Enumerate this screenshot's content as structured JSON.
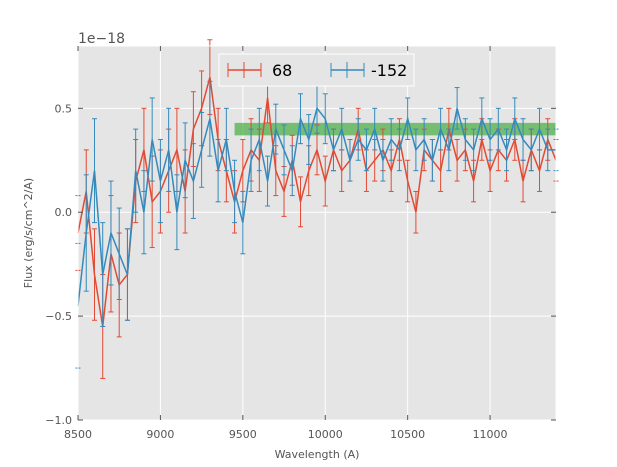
{
  "chart_data": {
    "type": "line",
    "title": "",
    "xlabel": "Wavelength (A)",
    "ylabel": "Flux (erg/s/cm^2/A)",
    "y_offset_label": "1e−18",
    "xlim": [
      8500,
      11400
    ],
    "ylim": [
      -1.0,
      0.8
    ],
    "xticks": [
      8500,
      9000,
      9500,
      10000,
      10500,
      11000
    ],
    "xtick_labels": [
      "8500",
      "9000",
      "9500",
      "10000",
      "10500",
      "11000"
    ],
    "yticks": [
      -1.0,
      -0.5,
      0.0,
      0.5
    ],
    "ytick_labels": [
      "−1.0",
      "−0.5",
      "0.0",
      "0.5"
    ],
    "grid": true,
    "legend_position": "top-center",
    "band": {
      "x0": 9450,
      "x1": 11400,
      "y0": 0.37,
      "y1": 0.43,
      "color": "#4daf4a"
    },
    "series": [
      {
        "name": "68",
        "color": "#e24a33",
        "x": [
          8500,
          8550,
          8600,
          8650,
          8700,
          8750,
          8800,
          8850,
          8900,
          8950,
          9000,
          9050,
          9100,
          9150,
          9200,
          9250,
          9300,
          9350,
          9400,
          9450,
          9500,
          9550,
          9600,
          9650,
          9700,
          9750,
          9800,
          9850,
          9900,
          9950,
          10000,
          10050,
          10100,
          10150,
          10200,
          10250,
          10300,
          10350,
          10400,
          10450,
          10500,
          10550,
          10600,
          10650,
          10700,
          10750,
          10800,
          10850,
          10900,
          10950,
          11000,
          11050,
          11100,
          11150,
          11200,
          11250,
          11300,
          11350,
          11400
        ],
        "y": [
          -0.1,
          0.1,
          -0.3,
          -0.55,
          -0.2,
          -0.35,
          -0.3,
          0.15,
          0.3,
          0.05,
          0.1,
          0.2,
          0.3,
          0.1,
          0.4,
          0.5,
          0.65,
          0.35,
          0.2,
          0.05,
          0.2,
          0.3,
          0.25,
          0.55,
          0.2,
          0.1,
          0.25,
          0.05,
          0.2,
          0.3,
          0.15,
          0.3,
          0.2,
          0.25,
          0.4,
          0.2,
          0.25,
          0.3,
          0.2,
          0.35,
          0.15,
          0.0,
          0.3,
          0.25,
          0.2,
          0.4,
          0.25,
          0.3,
          0.15,
          0.35,
          0.2,
          0.3,
          0.25,
          0.35,
          0.15,
          0.3,
          0.2,
          0.35,
          0.25
        ],
        "err": [
          0.18,
          0.2,
          0.22,
          0.25,
          0.28,
          0.25,
          0.22,
          0.2,
          0.2,
          0.22,
          0.2,
          0.2,
          0.2,
          0.2,
          0.18,
          0.18,
          0.18,
          0.15,
          0.15,
          0.15,
          0.15,
          0.15,
          0.15,
          0.12,
          0.12,
          0.12,
          0.12,
          0.12,
          0.12,
          0.12,
          0.12,
          0.1,
          0.1,
          0.1,
          0.1,
          0.1,
          0.1,
          0.1,
          0.1,
          0.1,
          0.1,
          0.1,
          0.1,
          0.1,
          0.1,
          0.1,
          0.1,
          0.1,
          0.1,
          0.1,
          0.1,
          0.1,
          0.1,
          0.1,
          0.1,
          0.1,
          0.1,
          0.1,
          0.1
        ]
      },
      {
        "name": "-152",
        "color": "#348abd",
        "x": [
          8500,
          8550,
          8600,
          8650,
          8700,
          8750,
          8800,
          8850,
          8900,
          8950,
          9000,
          9050,
          9100,
          9150,
          9200,
          9250,
          9300,
          9350,
          9400,
          9450,
          9500,
          9550,
          9600,
          9650,
          9700,
          9750,
          9800,
          9850,
          9900,
          9950,
          10000,
          10050,
          10100,
          10150,
          10200,
          10250,
          10300,
          10350,
          10400,
          10450,
          10500,
          10550,
          10600,
          10650,
          10700,
          10750,
          10800,
          10850,
          10900,
          10950,
          11000,
          11050,
          11100,
          11150,
          11200,
          11250,
          11300,
          11350,
          11400
        ],
        "y": [
          -0.45,
          -0.1,
          0.2,
          -0.3,
          -0.1,
          -0.2,
          -0.3,
          0.2,
          0.0,
          0.35,
          0.15,
          0.3,
          0.0,
          0.25,
          0.15,
          0.3,
          0.45,
          0.2,
          0.35,
          0.1,
          -0.05,
          0.25,
          0.35,
          0.15,
          0.4,
          0.3,
          0.2,
          0.45,
          0.35,
          0.5,
          0.45,
          0.3,
          0.4,
          0.25,
          0.35,
          0.3,
          0.4,
          0.25,
          0.35,
          0.3,
          0.45,
          0.3,
          0.35,
          0.25,
          0.4,
          0.3,
          0.5,
          0.35,
          0.3,
          0.45,
          0.35,
          0.4,
          0.3,
          0.45,
          0.35,
          0.3,
          0.4,
          0.3,
          0.3
        ],
        "err": [
          0.3,
          0.28,
          0.25,
          0.25,
          0.25,
          0.22,
          0.22,
          0.2,
          0.2,
          0.2,
          0.2,
          0.2,
          0.18,
          0.18,
          0.18,
          0.18,
          0.18,
          0.15,
          0.15,
          0.15,
          0.15,
          0.15,
          0.15,
          0.12,
          0.12,
          0.12,
          0.12,
          0.12,
          0.12,
          0.12,
          0.12,
          0.1,
          0.1,
          0.1,
          0.1,
          0.1,
          0.1,
          0.1,
          0.1,
          0.1,
          0.1,
          0.1,
          0.1,
          0.1,
          0.1,
          0.1,
          0.1,
          0.1,
          0.1,
          0.1,
          0.1,
          0.1,
          0.1,
          0.1,
          0.1,
          0.1,
          0.1,
          0.1,
          0.1
        ]
      }
    ]
  }
}
